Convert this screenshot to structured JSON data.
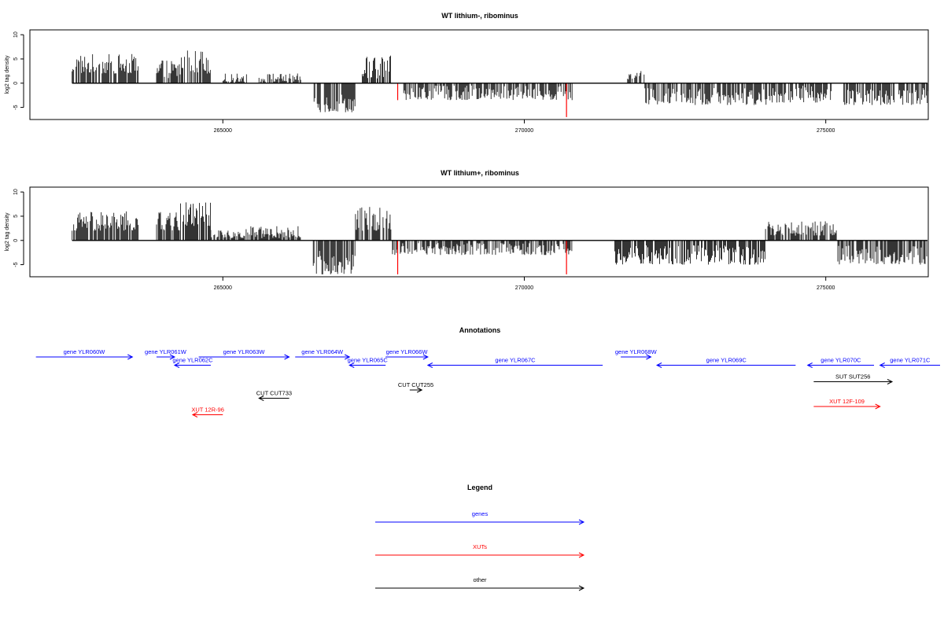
{
  "chart_data": [
    {
      "type": "bar",
      "title": "WT lithium-, ribominus",
      "ylabel": "log2 tag density",
      "xlim": [
        261800,
        276700
      ],
      "ylim": [
        -7.5,
        11
      ],
      "yticks": [
        -5,
        0,
        5,
        10
      ],
      "xticks": [
        265000,
        270000,
        275000
      ],
      "baseline": [
        262500,
        277400
      ],
      "grid": false,
      "segments": [
        {
          "start": 262500,
          "end": 263600,
          "min": 2,
          "max": 6
        },
        {
          "start": 263900,
          "end": 264300,
          "min": 1,
          "max": 5
        },
        {
          "start": 264300,
          "end": 264400,
          "min": 2,
          "max": 8
        },
        {
          "start": 264400,
          "end": 264800,
          "min": 2,
          "max": 7
        },
        {
          "start": 265000,
          "end": 265400,
          "min": 0.3,
          "max": 2
        },
        {
          "start": 265600,
          "end": 266300,
          "min": 0.3,
          "max": 2
        },
        {
          "start": 266500,
          "end": 267200,
          "min": -6,
          "max": -2
        },
        {
          "start": 267300,
          "end": 267800,
          "min": 1,
          "max": 6
        },
        {
          "start": 268000,
          "end": 270800,
          "min": -3.5,
          "max": -0.5
        },
        {
          "start": 271700,
          "end": 272000,
          "min": 0.5,
          "max": 2.5
        },
        {
          "start": 272000,
          "end": 274100,
          "min": -4.5,
          "max": -1
        },
        {
          "start": 274100,
          "end": 275100,
          "min": -4,
          "max": -0.5
        },
        {
          "start": 275300,
          "end": 276700,
          "min": -4.5,
          "max": -1
        }
      ],
      "highlights": [
        {
          "x": 267900,
          "value": -3.5
        },
        {
          "x": 270700,
          "value": -7
        }
      ]
    },
    {
      "type": "bar",
      "title": "WT lithium+, ribominus",
      "ylabel": "log2 tag density",
      "xlim": [
        261800,
        276700
      ],
      "ylim": [
        -7.5,
        11
      ],
      "yticks": [
        -5,
        0,
        5,
        10
      ],
      "xticks": [
        265000,
        270000,
        275000
      ],
      "baseline": [
        262500,
        277400
      ],
      "grid": false,
      "segments": [
        {
          "start": 262500,
          "end": 263600,
          "min": 2,
          "max": 6
        },
        {
          "start": 263900,
          "end": 264300,
          "min": 2,
          "max": 6
        },
        {
          "start": 264300,
          "end": 264800,
          "min": 3,
          "max": 8
        },
        {
          "start": 264800,
          "end": 265400,
          "min": 0.5,
          "max": 2.5
        },
        {
          "start": 265400,
          "end": 266300,
          "min": 0.5,
          "max": 3
        },
        {
          "start": 266500,
          "end": 267200,
          "min": -7,
          "max": -2
        },
        {
          "start": 267200,
          "end": 267800,
          "min": 2,
          "max": 7
        },
        {
          "start": 267800,
          "end": 270800,
          "min": -3,
          "max": -0.5
        },
        {
          "start": 271500,
          "end": 274000,
          "min": -5,
          "max": -1
        },
        {
          "start": 274000,
          "end": 275200,
          "min": 1,
          "max": 4
        },
        {
          "start": 275200,
          "end": 276700,
          "min": -5,
          "max": -1
        }
      ],
      "highlights": [
        {
          "x": 267900,
          "value": -7
        },
        {
          "x": 270700,
          "value": -7
        }
      ]
    }
  ],
  "annotations": {
    "title": "Annotations",
    "features": [
      {
        "label": "gene YLR060W",
        "start": 261900,
        "end": 263500,
        "row": 0,
        "color": "#0000ff",
        "dir": "right"
      },
      {
        "label": "gene YLR061W",
        "start": 263900,
        "end": 264200,
        "row": 0,
        "color": "#0000ff",
        "dir": "right"
      },
      {
        "label": "gene YLR062C",
        "start": 264200,
        "end": 264800,
        "row": 1,
        "color": "#0000ff",
        "dir": "left"
      },
      {
        "label": "gene YLR063W",
        "start": 264600,
        "end": 266100,
        "row": 0,
        "color": "#0000ff",
        "dir": "right"
      },
      {
        "label": "gene YLR064W",
        "start": 266200,
        "end": 267100,
        "row": 0,
        "color": "#0000ff",
        "dir": "right"
      },
      {
        "label": "gene YLR065C",
        "start": 267100,
        "end": 267700,
        "row": 1,
        "color": "#0000ff",
        "dir": "left"
      },
      {
        "label": "gene YLR066W",
        "start": 267700,
        "end": 268400,
        "row": 0,
        "color": "#0000ff",
        "dir": "right"
      },
      {
        "label": "gene YLR067C",
        "start": 268400,
        "end": 271300,
        "row": 1,
        "color": "#0000ff",
        "dir": "left"
      },
      {
        "label": "gene YLR068W",
        "start": 271600,
        "end": 272100,
        "row": 0,
        "color": "#0000ff",
        "dir": "right"
      },
      {
        "label": "gene YLR069C",
        "start": 272200,
        "end": 274500,
        "row": 1,
        "color": "#0000ff",
        "dir": "left"
      },
      {
        "label": "gene YLR070C",
        "start": 274700,
        "end": 275800,
        "row": 1,
        "color": "#0000ff",
        "dir": "left"
      },
      {
        "label": "gene YLR071C",
        "start": 275900,
        "end": 278000,
        "row": 1,
        "color": "#0000ff",
        "dir": "left"
      },
      {
        "label": "SUT SUT256",
        "start": 274800,
        "end": 276100,
        "row": 3,
        "color": "#000000",
        "dir": "right"
      },
      {
        "label": "CUT CUT255",
        "start": 268100,
        "end": 268300,
        "row": 4,
        "color": "#000000",
        "dir": "right"
      },
      {
        "label": "CUT CUT733",
        "start": 265600,
        "end": 266100,
        "row": 5,
        "color": "#000000",
        "dir": "left"
      },
      {
        "label": "XUT 12R-96",
        "start": 264500,
        "end": 265000,
        "row": 7,
        "color": "#ff0000",
        "dir": "left"
      },
      {
        "label": "XUT 12F-109",
        "start": 274800,
        "end": 275900,
        "row": 6,
        "color": "#ff0000",
        "dir": "right"
      }
    ]
  },
  "legend": {
    "title": "Legend",
    "items": [
      {
        "label": "genes",
        "color": "#0000ff"
      },
      {
        "label": "XUTs",
        "color": "#ff0000"
      },
      {
        "label": "other",
        "color": "#000000"
      }
    ]
  }
}
